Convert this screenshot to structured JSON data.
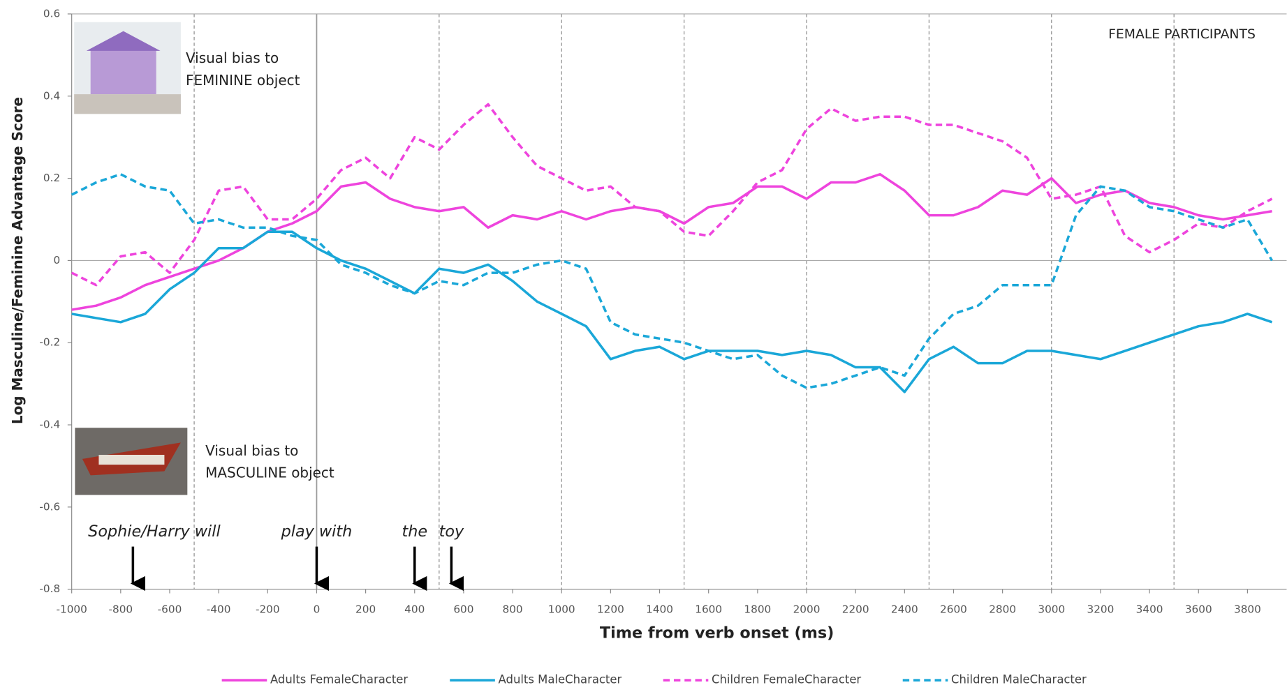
{
  "chart_data": {
    "type": "line",
    "title": "FEMALE PARTICIPANTS",
    "x_label": "Time from verb onset (ms)",
    "y_label": "Log Masculine/Feminine Advantage Score",
    "xlim": [
      -1000,
      3960
    ],
    "ylim": [
      -0.8,
      0.6
    ],
    "xticks": [
      -1000,
      -800,
      -600,
      -400,
      -200,
      0,
      200,
      400,
      600,
      800,
      1000,
      1200,
      1400,
      1600,
      1800,
      2000,
      2200,
      2400,
      2600,
      2800,
      3000,
      3200,
      3400,
      3600,
      3800
    ],
    "yticks": [
      -0.8,
      -0.6,
      -0.4,
      -0.2,
      0,
      0.2,
      0.4,
      0.6
    ],
    "reference_lines": [
      -500,
      0,
      500,
      1000,
      1500,
      2000,
      2500,
      3000,
      3500
    ],
    "annotations": [
      {
        "lines": [
          "Visual bias to",
          "FEMININE object"
        ]
      },
      {
        "lines": [
          "Visual bias to",
          "MASCULINE object"
        ]
      }
    ],
    "word_cues": [
      {
        "text": "Sophie/Harry will",
        "x": -750
      },
      {
        "text": "play with",
        "x": 0
      },
      {
        "text": "the",
        "x": 400
      },
      {
        "text": "toy",
        "x": 550
      }
    ],
    "x": [
      -1000,
      -900,
      -800,
      -700,
      -600,
      -500,
      -400,
      -300,
      -200,
      -100,
      0,
      100,
      200,
      300,
      400,
      500,
      600,
      700,
      800,
      900,
      1000,
      1100,
      1200,
      1300,
      1400,
      1500,
      1600,
      1700,
      1800,
      1900,
      2000,
      2100,
      2200,
      2300,
      2400,
      2500,
      2600,
      2700,
      2800,
      2900,
      3000,
      3100,
      3200,
      3300,
      3400,
      3500,
      3600,
      3700,
      3800,
      3900
    ],
    "series": [
      {
        "name": "Adults FemaleCharacter",
        "color": "#ee44dd",
        "style": "solid",
        "values": [
          -0.12,
          -0.11,
          -0.09,
          -0.06,
          -0.04,
          -0.02,
          0.0,
          0.03,
          0.07,
          0.09,
          0.12,
          0.18,
          0.19,
          0.15,
          0.13,
          0.12,
          0.13,
          0.08,
          0.11,
          0.1,
          0.12,
          0.1,
          0.12,
          0.13,
          0.12,
          0.09,
          0.13,
          0.14,
          0.18,
          0.18,
          0.15,
          0.19,
          0.19,
          0.21,
          0.17,
          0.11,
          0.11,
          0.13,
          0.17,
          0.16,
          0.2,
          0.14,
          0.16,
          0.17,
          0.14,
          0.13,
          0.11,
          0.1,
          0.11,
          0.12
        ]
      },
      {
        "name": "Adults MaleCharacter",
        "color": "#1aa7d8",
        "style": "solid",
        "values": [
          -0.13,
          -0.14,
          -0.15,
          -0.13,
          -0.07,
          -0.03,
          0.03,
          0.03,
          0.07,
          0.07,
          0.03,
          0.0,
          -0.02,
          -0.05,
          -0.08,
          -0.02,
          -0.03,
          -0.01,
          -0.05,
          -0.1,
          -0.13,
          -0.16,
          -0.24,
          -0.22,
          -0.21,
          -0.24,
          -0.22,
          -0.22,
          -0.22,
          -0.23,
          -0.22,
          -0.23,
          -0.26,
          -0.26,
          -0.32,
          -0.24,
          -0.21,
          -0.25,
          -0.25,
          -0.22,
          -0.22,
          -0.23,
          -0.24,
          -0.22,
          -0.2,
          -0.18,
          -0.16,
          -0.15,
          -0.13,
          -0.15
        ]
      },
      {
        "name": "Children FemaleCharacter",
        "color": "#ee44dd",
        "style": "dashed",
        "values": [
          -0.03,
          -0.06,
          0.01,
          0.02,
          -0.03,
          0.05,
          0.17,
          0.18,
          0.1,
          0.1,
          0.15,
          0.22,
          0.25,
          0.2,
          0.3,
          0.27,
          0.33,
          0.38,
          0.3,
          0.23,
          0.2,
          0.17,
          0.18,
          0.13,
          0.12,
          0.07,
          0.06,
          0.12,
          0.19,
          0.22,
          0.32,
          0.37,
          0.34,
          0.35,
          0.35,
          0.33,
          0.33,
          0.31,
          0.29,
          0.25,
          0.15,
          0.16,
          0.18,
          0.06,
          0.02,
          0.05,
          0.09,
          0.08,
          0.12,
          0.15
        ]
      },
      {
        "name": "Children MaleCharacter",
        "color": "#1aa7d8",
        "style": "dashed",
        "values": [
          0.16,
          0.19,
          0.21,
          0.18,
          0.17,
          0.09,
          0.1,
          0.08,
          0.08,
          0.06,
          0.05,
          -0.01,
          -0.03,
          -0.06,
          -0.08,
          -0.05,
          -0.06,
          -0.03,
          -0.03,
          -0.01,
          0.0,
          -0.02,
          -0.15,
          -0.18,
          -0.19,
          -0.2,
          -0.22,
          -0.24,
          -0.23,
          -0.28,
          -0.31,
          -0.3,
          -0.28,
          -0.26,
          -0.28,
          -0.19,
          -0.13,
          -0.11,
          -0.06,
          -0.06,
          -0.06,
          0.11,
          0.18,
          0.17,
          0.13,
          0.12,
          0.1,
          0.08,
          0.1,
          0.0
        ]
      }
    ]
  }
}
